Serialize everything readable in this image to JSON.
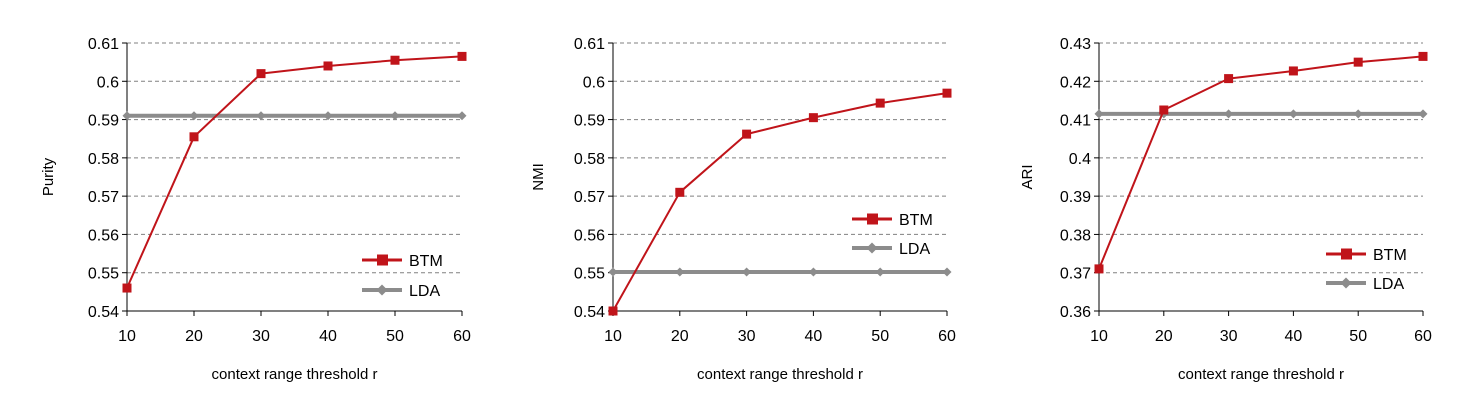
{
  "colors": {
    "btm": "#c0141a",
    "lda": "#8c8c8c",
    "grid": "#808080",
    "axis": "#000000"
  },
  "chart_data": [
    {
      "type": "line",
      "x": [
        10,
        20,
        30,
        40,
        50,
        60
      ],
      "xlabel": "context range threshold r",
      "ylabel": "Purity",
      "ylim": [
        0.54,
        0.61
      ],
      "yticks": [
        "0.54",
        "0.55",
        "0.56",
        "0.57",
        "0.58",
        "0.59",
        "0.6",
        "0.61"
      ],
      "xticks": [
        "10",
        "20",
        "30",
        "40",
        "50",
        "60"
      ],
      "grid": true,
      "legend": "bottom-right",
      "series": [
        {
          "name": "BTM",
          "values": [
            0.546,
            0.5855,
            0.602,
            0.604,
            0.6055,
            0.6065
          ]
        },
        {
          "name": "LDA",
          "values": [
            0.591,
            0.591,
            0.591,
            0.591,
            0.591,
            0.591
          ]
        }
      ]
    },
    {
      "type": "line",
      "x": [
        10,
        20,
        30,
        40,
        50,
        60
      ],
      "xlabel": "context range threshold r",
      "ylabel": "NMI",
      "ylim": [
        0.54,
        0.61
      ],
      "yticks": [
        "0.54",
        "0.55",
        "0.56",
        "0.57",
        "0.58",
        "0.59",
        "0.6",
        "0.61"
      ],
      "xticks": [
        "10",
        "20",
        "30",
        "40",
        "50",
        "60"
      ],
      "grid": true,
      "legend": "right",
      "series": [
        {
          "name": "BTM",
          "values": [
            0.54,
            0.571,
            0.5862,
            0.5905,
            0.5943,
            0.5969
          ]
        },
        {
          "name": "LDA",
          "values": [
            0.5502,
            0.5502,
            0.5502,
            0.5502,
            0.5502,
            0.5502
          ]
        }
      ]
    },
    {
      "type": "line",
      "x": [
        10,
        20,
        30,
        40,
        50,
        60
      ],
      "xlabel": "context range threshold r",
      "ylabel": "ARI",
      "ylim": [
        0.36,
        0.43
      ],
      "yticks": [
        "0.36",
        "0.37",
        "0.38",
        "0.39",
        "0.4",
        "0.41",
        "0.42",
        "0.43"
      ],
      "xticks": [
        "10",
        "20",
        "30",
        "40",
        "50",
        "60"
      ],
      "grid": true,
      "legend": "bottom-right",
      "series": [
        {
          "name": "BTM",
          "values": [
            0.371,
            0.4125,
            0.4207,
            0.4227,
            0.425,
            0.4265
          ]
        },
        {
          "name": "LDA",
          "values": [
            0.4115,
            0.4115,
            0.4115,
            0.4115,
            0.4115,
            0.4115
          ]
        }
      ]
    }
  ]
}
